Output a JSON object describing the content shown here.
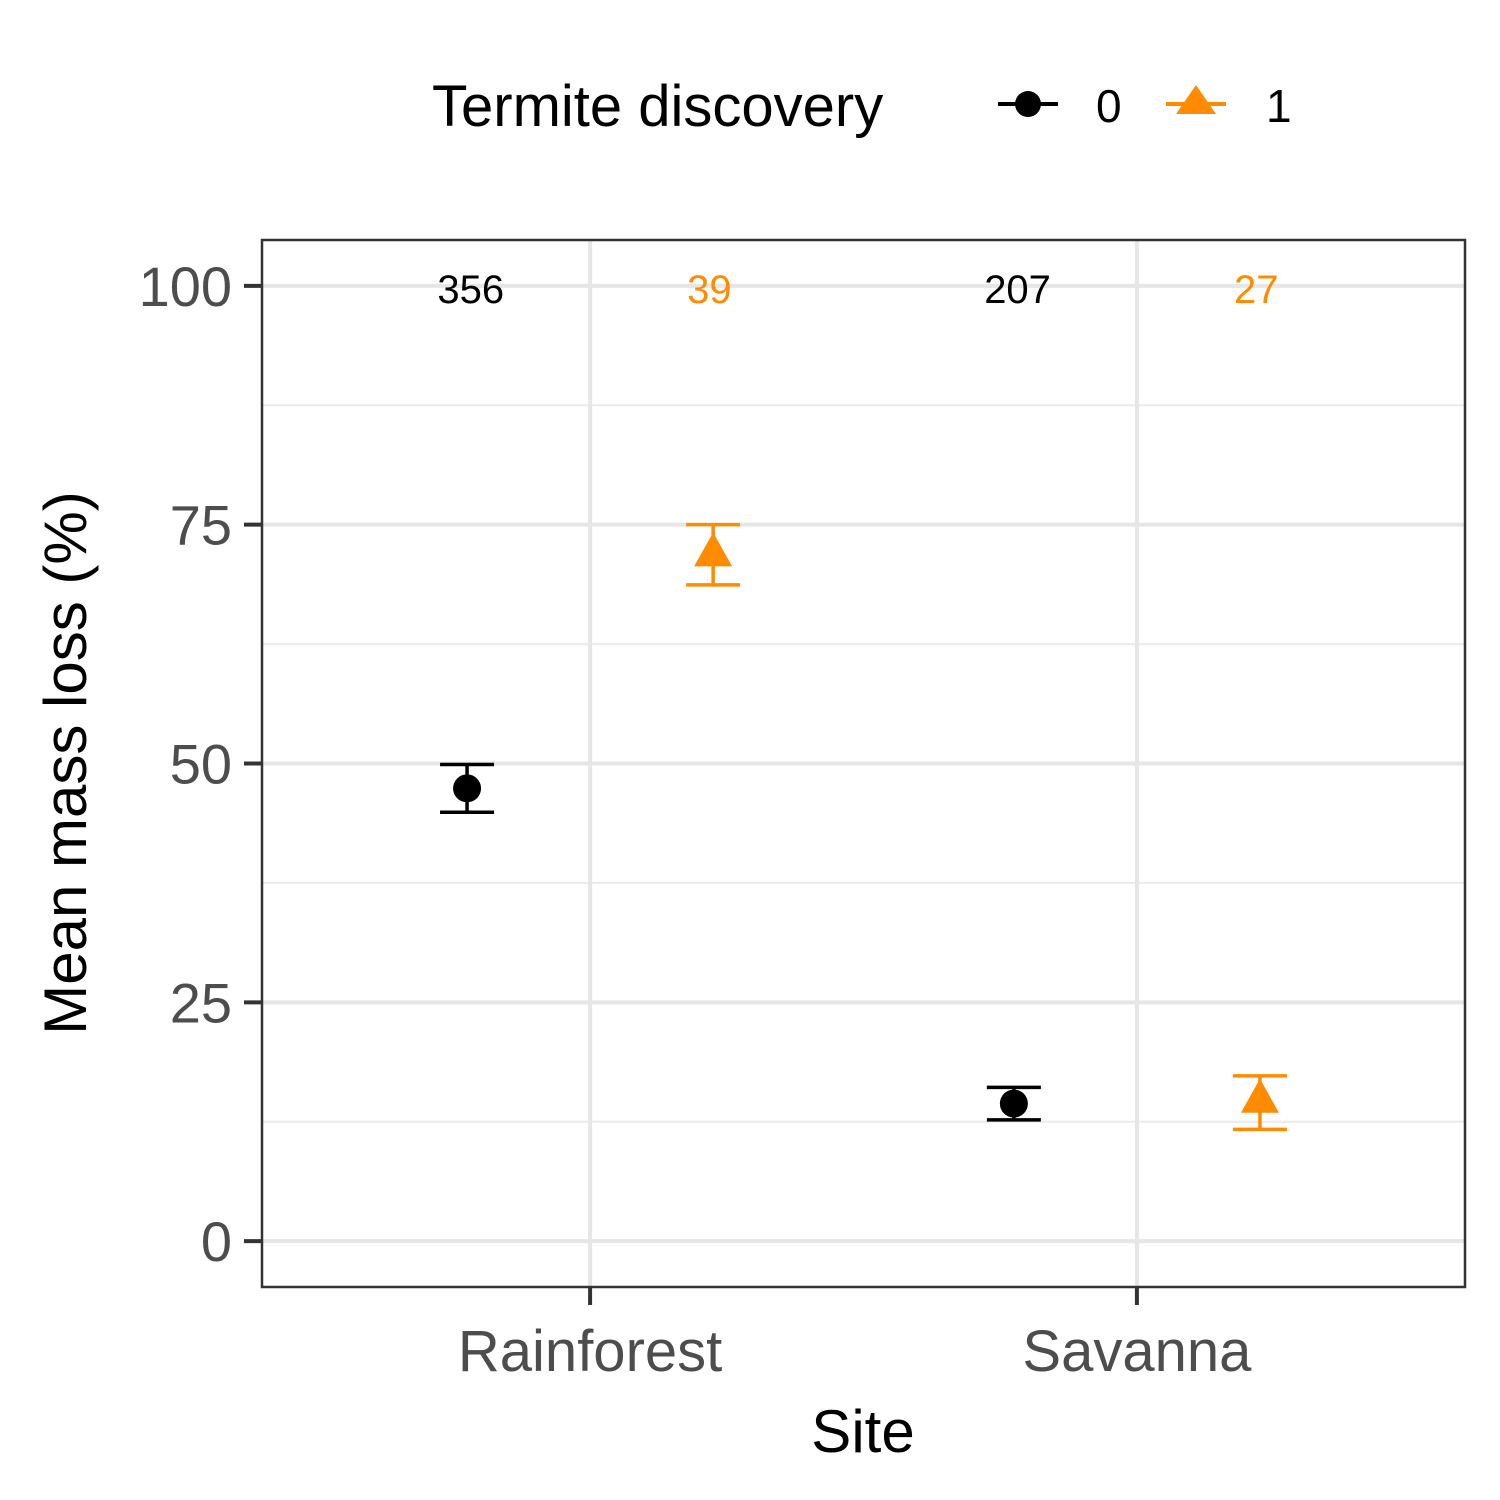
{
  "chart_data": {
    "type": "scatter",
    "xlabel": "Site",
    "ylabel": "Mean mass loss (%)",
    "categories": [
      "Rainforest",
      "Savanna"
    ],
    "ylim": [
      -4.8,
      104.8
    ],
    "yticks": [
      0,
      25,
      50,
      75,
      100
    ],
    "grid": true,
    "legend": {
      "title": "Termite discovery",
      "position": "top",
      "entries": [
        "0",
        "1"
      ]
    },
    "series": [
      {
        "name": "0",
        "color": "#000000",
        "marker": "circle",
        "values": [
          47.4,
          14.4
        ],
        "err_low": [
          44.9,
          12.7
        ],
        "err_high": [
          49.9,
          16.1
        ],
        "n_labels": [
          "356",
          "207"
        ]
      },
      {
        "name": "1",
        "color": "#ff8c00",
        "marker": "triangle",
        "values": [
          72.0,
          14.8
        ],
        "err_low": [
          68.7,
          11.7
        ],
        "err_high": [
          75.0,
          17.3
        ],
        "n_labels": [
          "39",
          "27"
        ]
      }
    ]
  }
}
